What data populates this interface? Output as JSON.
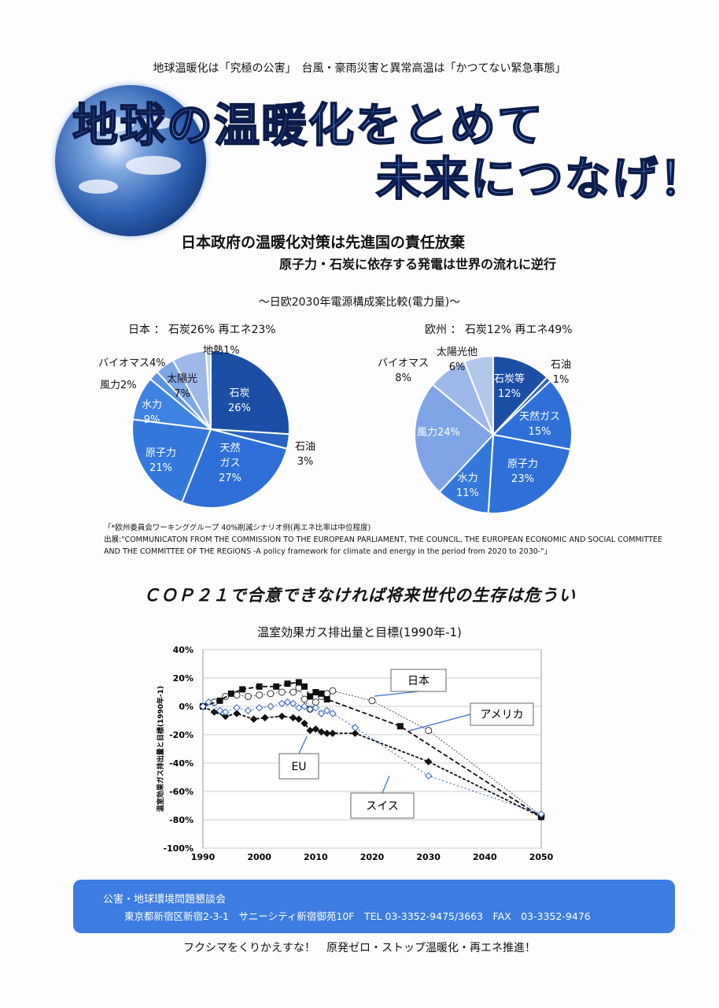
{
  "header": {
    "topline": "地球温暖化は「究極の公害」　台風・豪雨災害と異常高温は「かつてない緊急事態」",
    "title_line1": "地球の温暖化をとめて",
    "title_line2": "未来につなげ！",
    "subtitle1": "日本政府の温暖化対策は先進国の責任放棄",
    "subtitle2": "原子力・石炭に依存する発電は世界の流れに逆行"
  },
  "comparison_title": "～日欧2030年電源構成案比較(電力量)～",
  "japan_heading": "日本 ： 石炭26% 再エネ23%",
  "europe_heading": "欧州 ： 石炭12% 再エネ49%",
  "note": {
    "line1": "「*欧州委員会ワーキンググループ 40%削減シナリオ例(再エネ比率は中位程度)",
    "line2": "出展:\"COMMUNICATON FROM THE COMMISSION TO THE EUROPEAN PARLIAMENT, THE COUNCIL, THE EUROPEAN ECONOMIC AND SOCIAL COMMITTEE",
    "line3": "AND THE COMMITTEE OF THE REGIONS -A policy framework for climate and energy in the period from 2020 to 2030-\"」"
  },
  "cop_heading": "ＣＯＰ２１で合意できなければ将来世代の生存は危うい",
  "chart_data": [
    {
      "type": "pie",
      "title": "日本",
      "slices": [
        {
          "label": "石炭",
          "value": 26,
          "color": "#1d4ea6"
        },
        {
          "label": "石油",
          "value": 3,
          "color": "#2a63c4"
        },
        {
          "label": "天然ガス",
          "value": 27,
          "color": "#2e6fd8"
        },
        {
          "label": "原子力",
          "value": 21,
          "color": "#3478dc"
        },
        {
          "label": "水力",
          "value": 9,
          "color": "#3f83e2"
        },
        {
          "label": "風力",
          "value": 2,
          "color": "#5b93e4"
        },
        {
          "label": "バイオマス",
          "value": 4,
          "color": "#7ea7e8"
        },
        {
          "label": "太陽光",
          "value": 7,
          "color": "#9db9ea"
        },
        {
          "label": "地熱",
          "value": 1,
          "color": "#c4d4f0"
        }
      ]
    },
    {
      "type": "pie",
      "title": "欧州",
      "slices": [
        {
          "label": "石炭等",
          "value": 12,
          "color": "#1d4ea6"
        },
        {
          "label": "石油",
          "value": 1,
          "color": "#2a63c4"
        },
        {
          "label": "天然ガス",
          "value": 15,
          "color": "#2f70d8"
        },
        {
          "label": "原子力",
          "value": 23,
          "color": "#2f70d8"
        },
        {
          "label": "水力",
          "value": 11,
          "color": "#3478dc"
        },
        {
          "label": "風力",
          "value": 24,
          "color": "#7fa5e6"
        },
        {
          "label": "バイオマス",
          "value": 8,
          "color": "#9db9ea"
        },
        {
          "label": "太陽光他",
          "value": 6,
          "color": "#b4c8ee"
        }
      ]
    },
    {
      "type": "line",
      "title": "温室効果ガス排出量と目標(1990年-1)",
      "ylabel": "温室効果ガス排出量と目標(1990年-1)",
      "xlabel": "",
      "xlim": [
        1990,
        2050
      ],
      "ylim": [
        -100,
        40
      ],
      "grid": true,
      "xticks": [
        1990,
        2000,
        2010,
        2020,
        2030,
        2040,
        2050
      ],
      "yticks": [
        "40%",
        "20%",
        "0%",
        "-20%",
        "-40%",
        "-60%",
        "-80%",
        "-100%"
      ],
      "yvals": [
        40,
        20,
        0,
        -20,
        -40,
        -60,
        -80,
        -100
      ],
      "series": [
        {
          "name": "日本",
          "marker": "circle-open",
          "color": "#555",
          "points": [
            [
              1990,
              0
            ],
            [
              1992,
              3
            ],
            [
              1994,
              7
            ],
            [
              1996,
              8
            ],
            [
              1998,
              7
            ],
            [
              2000,
              8
            ],
            [
              2002,
              9
            ],
            [
              2004,
              10
            ],
            [
              2006,
              10
            ],
            [
              2007,
              13
            ],
            [
              2008,
              5
            ],
            [
              2009,
              -2
            ],
            [
              2010,
              3
            ],
            [
              2011,
              7
            ],
            [
              2012,
              9
            ],
            [
              2013,
              11
            ],
            [
              2020,
              4
            ],
            [
              2030,
              -17
            ],
            [
              2050,
              -77
            ]
          ]
        },
        {
          "name": "アメリカ",
          "marker": "square-filled",
          "color": "#111",
          "points": [
            [
              1990,
              0
            ],
            [
              1993,
              4
            ],
            [
              1995,
              9
            ],
            [
              1997,
              12
            ],
            [
              2000,
              14
            ],
            [
              2003,
              14
            ],
            [
              2005,
              16
            ],
            [
              2007,
              17
            ],
            [
              2008,
              14
            ],
            [
              2009,
              7
            ],
            [
              2010,
              10
            ],
            [
              2011,
              9
            ],
            [
              2012,
              5
            ],
            [
              2025,
              -14
            ],
            [
              2050,
              -78
            ]
          ]
        },
        {
          "name": "EU",
          "marker": "diamond-filled",
          "color": "#111",
          "points": [
            [
              1990,
              0
            ],
            [
              1992,
              -4
            ],
            [
              1994,
              -7
            ],
            [
              1996,
              -5
            ],
            [
              1999,
              -9
            ],
            [
              2001,
              -8
            ],
            [
              2004,
              -7
            ],
            [
              2006,
              -8
            ],
            [
              2007,
              -9
            ],
            [
              2008,
              -12
            ],
            [
              2009,
              -17
            ],
            [
              2010,
              -16
            ],
            [
              2011,
              -18
            ],
            [
              2012,
              -19
            ],
            [
              2013,
              -19
            ],
            [
              2017,
              -19
            ],
            [
              2030,
              -39
            ],
            [
              2050,
              -78
            ]
          ]
        },
        {
          "name": "スイス",
          "marker": "diamond-open",
          "color": "#2b5fc0",
          "points": [
            [
              1990,
              0
            ],
            [
              1991,
              3
            ],
            [
              1993,
              -3
            ],
            [
              1994,
              -4
            ],
            [
              1996,
              -1
            ],
            [
              1998,
              -3
            ],
            [
              2000,
              -1
            ],
            [
              2002,
              0
            ],
            [
              2004,
              2
            ],
            [
              2005,
              3
            ],
            [
              2006,
              2
            ],
            [
              2007,
              -1
            ],
            [
              2008,
              0
            ],
            [
              2009,
              -2
            ],
            [
              2010,
              -1
            ],
            [
              2011,
              -5
            ],
            [
              2012,
              -3
            ],
            [
              2013,
              -5
            ],
            [
              2017,
              -15
            ],
            [
              2030,
              -49
            ],
            [
              2050,
              -76
            ]
          ]
        }
      ],
      "callouts": [
        "日本",
        "アメリカ",
        "EU",
        "スイス"
      ]
    }
  ],
  "footer": {
    "org": "公害・地球環境問題懇談会",
    "address": "東京都新宿区新宿2-3-1　サニーシティ新宿御苑10F　TEL 03-3352-9475/3663　FAX　03-3352-9476"
  },
  "bottom_slogan": "フクシマをくりかえすな！　原発ゼロ・ストップ温暖化・再エネ推進！"
}
